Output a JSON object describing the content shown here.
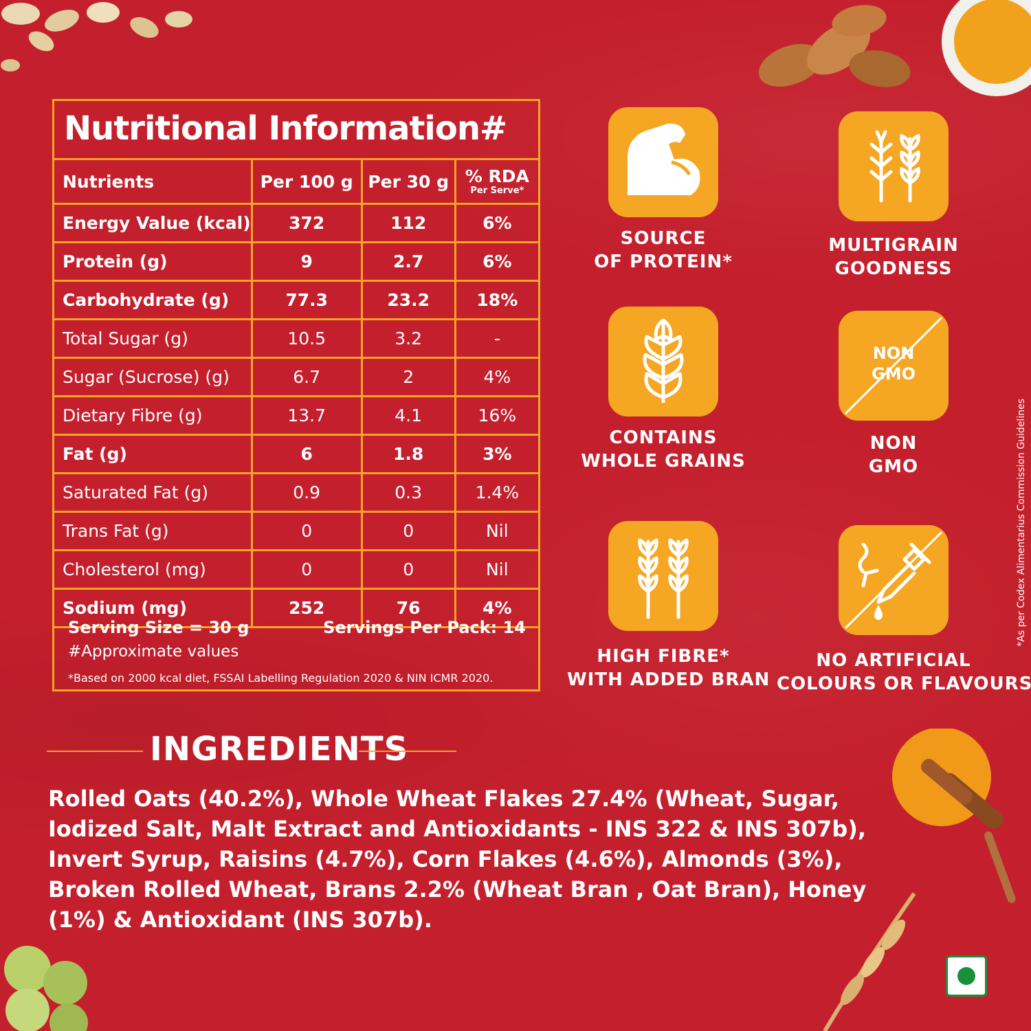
{
  "nutrition": {
    "title": "Nutritional Information#",
    "headers": {
      "nutrients": "Nutrients",
      "per100": "Per 100 g",
      "per30": "Per 30 g",
      "rda": "% RDA",
      "rda_sub": "Per Serve*"
    },
    "rows": [
      {
        "name": "Energy Value (kcal)",
        "per100": "372",
        "per30": "112",
        "rda": "6%"
      },
      {
        "name": "Protein (g)",
        "per100": "9",
        "per30": "2.7",
        "rda": "6%"
      },
      {
        "name": "Carbohydrate (g)",
        "per100": "77.3",
        "per30": "23.2",
        "rda": "18%"
      },
      {
        "name": "Total Sugar (g)",
        "per100": "10.5",
        "per30": "3.2",
        "rda": "-"
      },
      {
        "name": "Sugar (Sucrose) (g)",
        "per100": "6.7",
        "per30": "2",
        "rda": "4%"
      },
      {
        "name": "Dietary Fibre (g)",
        "per100": "13.7",
        "per30": "4.1",
        "rda": "16%"
      },
      {
        "name": "Fat (g)",
        "per100": "6",
        "per30": "1.8",
        "rda": "3%"
      },
      {
        "name": "Saturated Fat (g)",
        "per100": "0.9",
        "per30": "0.3",
        "rda": "1.4%"
      },
      {
        "name": "Trans Fat (g)",
        "per100": "0",
        "per30": "0",
        "rda": "Nil"
      },
      {
        "name": "Cholesterol (mg)",
        "per100": "0",
        "per30": "0",
        "rda": "Nil"
      },
      {
        "name": "Sodium (mg)",
        "per100": "252",
        "per30": "76",
        "rda": "4%"
      }
    ],
    "serving_size": "Serving Size = 30 g",
    "servings_per_pack": "Servings Per Pack: 14",
    "approx_note": "#Approximate values",
    "basis_note": "*Based on 2000 kcal diet, FSSAI Labelling Regulation 2020 & NIN ICMR 2020."
  },
  "badges": [
    {
      "icon": "flexed-arm-icon",
      "line1": "SOURCE",
      "line2": "OF PROTEIN*"
    },
    {
      "icon": "multigrain-icon",
      "line1": "MULTIGRAIN",
      "line2": "GOODNESS"
    },
    {
      "icon": "grain-ear-icon",
      "line1": "CONTAINS",
      "line2": "WHOLE GRAINS"
    },
    {
      "icon": "non-gmo-icon",
      "icon_text1": "NON",
      "icon_text2": "GMO",
      "line1": "NON",
      "line2": "GMO"
    },
    {
      "icon": "wheat-stalks-icon",
      "line1": "HIGH FIBRE*",
      "line2": "WITH ADDED BRAN"
    },
    {
      "icon": "dropper-icon",
      "line1": "NO ARTIFICIAL",
      "line2": "COLOURS OR FLAVOURS"
    }
  ],
  "ingredients": {
    "title": "INGREDIENTS",
    "text": "Rolled Oats (40.2%), Whole Wheat Flakes 27.4% (Wheat, Sugar, Iodized Salt, Malt Extract and Antioxidants - INS 322 & INS 307b), Invert Syrup, Raisins (4.7%), Corn Flakes (4.6%), Almonds (3%), Broken Rolled Wheat, Brans 2.2% (Wheat Bran , Oat Bran), Honey (1%) & Antioxidant (INS 307b)."
  },
  "side_note": "*As per Codex Alimentarius Commission Guidelines",
  "colors": {
    "background": "#c41f2c",
    "accent": "#f5a623",
    "veg": "#1a8f3a"
  }
}
